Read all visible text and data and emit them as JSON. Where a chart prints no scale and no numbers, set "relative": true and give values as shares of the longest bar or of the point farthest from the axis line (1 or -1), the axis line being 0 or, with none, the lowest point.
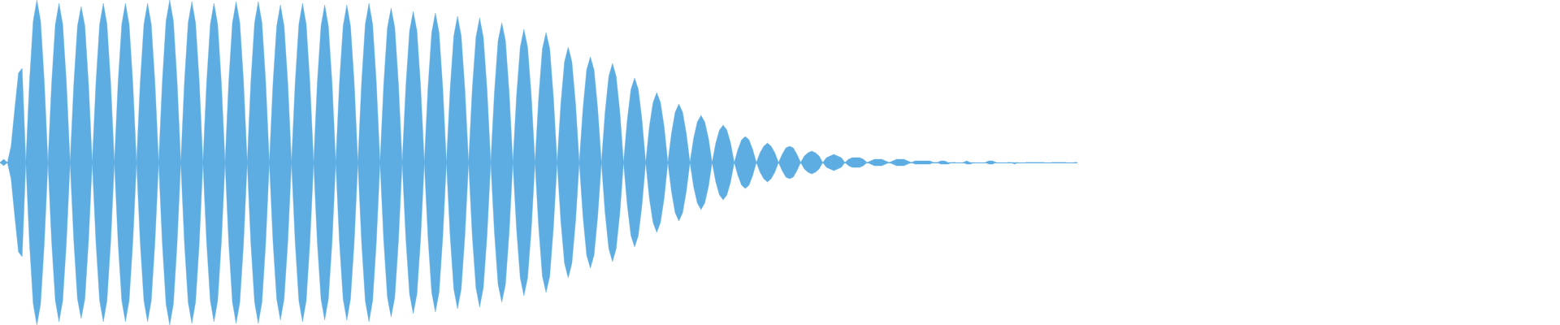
{
  "chart_data": {
    "type": "area",
    "relative": true,
    "categories": [
      null,
      null,
      null,
      null,
      null,
      null,
      null,
      null,
      null,
      null,
      null,
      null,
      null,
      null,
      null,
      null,
      null,
      null,
      null,
      null,
      null,
      null,
      null,
      null,
      null,
      null,
      null,
      null,
      null,
      null,
      null,
      null,
      null,
      null,
      null,
      null,
      null,
      null,
      null,
      null,
      null,
      null,
      null,
      null,
      null,
      null,
      null,
      null,
      null,
      null,
      null,
      null,
      null,
      null,
      null,
      null,
      null,
      null,
      null,
      null,
      null,
      null,
      null,
      null,
      null,
      null,
      null,
      null,
      null,
      null,
      null,
      null,
      null,
      null,
      null,
      null,
      null,
      null,
      null,
      null,
      null,
      null,
      null,
      null,
      null,
      null,
      null,
      null,
      null,
      null,
      null,
      null,
      null,
      null,
      null,
      null,
      null,
      null,
      null,
      null,
      null,
      null,
      null,
      null,
      null,
      null,
      null,
      null,
      null,
      null,
      null,
      null,
      null,
      null,
      null,
      null,
      null,
      null,
      null,
      null,
      null,
      null,
      null,
      null,
      null,
      null,
      null,
      null,
      null,
      null,
      null,
      null,
      null,
      null,
      null,
      null,
      null,
      null,
      null,
      null,
      null,
      null,
      null,
      null,
      null,
      null,
      null,
      null,
      null,
      null,
      null,
      null,
      null,
      null,
      null,
      null,
      null,
      null,
      null,
      null,
      null,
      null,
      null,
      null,
      null,
      null,
      null,
      null,
      null,
      null,
      null,
      null,
      null,
      null,
      null,
      null,
      null,
      null,
      null,
      null,
      null,
      null,
      null,
      null,
      null,
      null,
      null,
      null,
      null,
      null,
      null,
      null,
      null,
      null,
      null,
      null,
      null,
      null,
      null,
      null,
      null,
      null,
      null,
      null,
      null,
      null,
      null,
      null,
      null,
      null,
      null,
      null,
      null,
      null,
      null,
      null,
      null,
      null,
      null,
      null,
      null,
      null,
      null,
      null,
      null,
      null,
      null,
      null,
      null,
      null,
      null,
      null,
      null,
      null,
      null,
      null,
      null,
      null,
      null,
      null,
      null,
      null,
      null,
      null,
      null,
      null,
      null,
      null,
      null,
      null,
      null,
      null,
      null,
      null,
      null,
      null,
      null,
      null,
      null,
      null,
      null,
      null,
      null,
      null,
      null,
      null,
      null,
      null,
      null,
      null,
      null,
      null,
      null,
      null,
      null,
      null,
      null,
      null,
      null,
      null,
      null,
      null,
      null,
      null,
      null,
      null,
      null,
      null,
      null,
      null,
      null,
      null,
      null
    ],
    "series": [
      {
        "color": "#5dade2",
        "values": [
          0,
          0.02,
          0,
          0.1,
          0.33,
          0.55,
          0.58,
          0,
          0.5,
          0.87,
          1,
          0.87,
          0.5,
          0,
          0.49,
          0.85,
          0.98,
          0.85,
          0.49,
          0,
          0.48,
          0.84,
          0.96,
          0.84,
          0.48,
          0,
          0.49,
          0.85,
          0.98,
          0.85,
          0.49,
          0,
          0.49,
          0.85,
          0.98,
          0.85,
          0.49,
          0,
          0.49,
          0.85,
          0.98,
          0.85,
          0.49,
          0,
          0.5,
          0.87,
          1,
          0.87,
          0.5,
          0,
          0.5,
          0.86,
          0.99,
          0.86,
          0.5,
          0,
          0.49,
          0.85,
          0.98,
          0.85,
          0.49,
          0,
          0.5,
          0.86,
          0.99,
          0.86,
          0.5,
          0,
          0.5,
          0.86,
          0.99,
          0.86,
          0.5,
          0,
          0.49,
          0.84,
          0.97,
          0.84,
          0.49,
          0,
          0.49,
          0.85,
          0.98,
          0.85,
          0.49,
          0,
          0.49,
          0.84,
          0.97,
          0.84,
          0.49,
          0,
          0.49,
          0.84,
          0.97,
          0.84,
          0.49,
          0,
          0.49,
          0.85,
          0.98,
          0.85,
          0.49,
          0,
          0.48,
          0.83,
          0.95,
          0.83,
          0.48,
          0,
          0.47,
          0.81,
          0.93,
          0.81,
          0.47,
          0,
          0.46,
          0.8,
          0.92,
          0.8,
          0.46,
          0,
          0.45,
          0.78,
          0.9,
          0.78,
          0.45,
          0,
          0.45,
          0.77,
          0.89,
          0.77,
          0.45,
          0,
          0.43,
          0.75,
          0.86,
          0.75,
          0.43,
          0,
          0.41,
          0.71,
          0.82,
          0.71,
          0.41,
          0,
          0.4,
          0.7,
          0.8,
          0.7,
          0.4,
          0,
          0.36,
          0.62,
          0.71,
          0.62,
          0.36,
          0,
          0.33,
          0.57,
          0.65,
          0.57,
          0.33,
          0,
          0.31,
          0.53,
          0.61,
          0.53,
          0.31,
          0,
          0.26,
          0.45,
          0.52,
          0.45,
          0.26,
          0,
          0.22,
          0.37,
          0.43,
          0.37,
          0.22,
          0,
          0.18,
          0.31,
          0.36,
          0.31,
          0.18,
          0,
          0.15,
          0.25,
          0.29,
          0.25,
          0.15,
          0,
          0.12,
          0.2,
          0.23,
          0.2,
          0.12,
          0,
          0.08,
          0.14,
          0.16,
          0.14,
          0.08,
          0,
          0.06,
          0.1,
          0.12,
          0.1,
          0.06,
          0,
          0.05,
          0.09,
          0.1,
          0.09,
          0.05,
          0,
          0.04,
          0.06,
          0.07,
          0.06,
          0.04,
          0,
          0.03,
          0.04,
          0.05,
          0.04,
          0.03,
          0,
          0.02,
          0.03,
          0.03,
          0.03,
          0.02,
          0,
          0.01,
          0.02,
          0.02,
          0.02,
          0.01,
          0,
          0.01,
          0.02,
          0.02,
          0.02,
          0.01,
          0,
          0.01,
          0.01,
          0.01,
          0.01,
          0.01,
          0,
          0,
          0.01,
          0.01,
          0,
          0,
          0,
          null,
          0,
          0.01,
          0,
          0,
          null,
          null,
          0,
          0.01,
          0.01,
          0,
          null,
          null,
          0,
          0,
          0,
          0,
          null,
          0,
          0,
          0,
          0,
          0,
          0,
          null,
          0,
          0,
          0,
          0,
          0,
          null,
          0,
          0
        ]
      },
      {
        "color": "#5dade2",
        "values": [
          0,
          -0.02,
          0,
          -0.1,
          -0.33,
          -0.55,
          -0.58,
          0,
          -0.5,
          -0.87,
          -1,
          -0.87,
          -0.5,
          0,
          -0.49,
          -0.85,
          -0.98,
          -0.85,
          -0.49,
          0,
          -0.48,
          -0.84,
          -0.96,
          -0.84,
          -0.48,
          0,
          -0.49,
          -0.85,
          -0.98,
          -0.85,
          -0.49,
          0,
          -0.49,
          -0.85,
          -0.98,
          -0.85,
          -0.49,
          0,
          -0.49,
          -0.85,
          -0.98,
          -0.85,
          -0.49,
          0,
          -0.5,
          -0.87,
          -1,
          -0.87,
          -0.5,
          0,
          -0.5,
          -0.86,
          -0.99,
          -0.86,
          -0.5,
          0,
          -0.49,
          -0.85,
          -0.98,
          -0.85,
          -0.49,
          0,
          -0.5,
          -0.86,
          -0.99,
          -0.86,
          -0.5,
          0,
          -0.5,
          -0.86,
          -0.99,
          -0.86,
          -0.5,
          0,
          -0.49,
          -0.84,
          -0.97,
          -0.84,
          -0.49,
          0,
          -0.49,
          -0.85,
          -0.98,
          -0.85,
          -0.49,
          0,
          -0.49,
          -0.84,
          -0.97,
          -0.84,
          -0.49,
          0,
          -0.49,
          -0.84,
          -0.97,
          -0.84,
          -0.49,
          0,
          -0.49,
          -0.85,
          -0.98,
          -0.85,
          -0.49,
          0,
          -0.48,
          -0.83,
          -0.95,
          -0.83,
          -0.48,
          0,
          -0.47,
          -0.81,
          -0.93,
          -0.81,
          -0.47,
          0,
          -0.46,
          -0.8,
          -0.92,
          -0.8,
          -0.46,
          0,
          -0.45,
          -0.78,
          -0.9,
          -0.78,
          -0.45,
          0,
          -0.45,
          -0.77,
          -0.89,
          -0.77,
          -0.45,
          0,
          -0.43,
          -0.75,
          -0.86,
          -0.75,
          -0.43,
          0,
          -0.41,
          -0.71,
          -0.82,
          -0.71,
          -0.41,
          0,
          -0.4,
          -0.7,
          -0.8,
          -0.7,
          -0.4,
          0,
          -0.36,
          -0.62,
          -0.71,
          -0.62,
          -0.36,
          0,
          -0.33,
          -0.57,
          -0.65,
          -0.57,
          -0.33,
          0,
          -0.31,
          -0.53,
          -0.61,
          -0.53,
          -0.31,
          0,
          -0.26,
          -0.45,
          -0.52,
          -0.45,
          -0.26,
          0,
          -0.22,
          -0.37,
          -0.43,
          -0.37,
          -0.22,
          0,
          -0.18,
          -0.31,
          -0.36,
          -0.31,
          -0.18,
          0,
          -0.15,
          -0.25,
          -0.29,
          -0.25,
          -0.15,
          0,
          -0.12,
          -0.2,
          -0.23,
          -0.2,
          -0.12,
          0,
          -0.08,
          -0.14,
          -0.16,
          -0.14,
          -0.08,
          0,
          -0.06,
          -0.1,
          -0.12,
          -0.1,
          -0.06,
          0,
          -0.05,
          -0.09,
          -0.1,
          -0.09,
          -0.05,
          0,
          -0.04,
          -0.06,
          -0.07,
          -0.06,
          -0.04,
          0,
          -0.03,
          -0.04,
          -0.05,
          -0.04,
          -0.03,
          0,
          -0.02,
          -0.03,
          -0.03,
          -0.03,
          -0.02,
          0,
          -0.01,
          -0.02,
          -0.02,
          -0.02,
          -0.01,
          0,
          -0.01,
          -0.02,
          -0.02,
          -0.02,
          -0.01,
          0,
          -0.01,
          -0.01,
          -0.01,
          -0.01,
          -0.01,
          0,
          0,
          -0.01,
          -0.01,
          -0.01,
          0,
          0,
          null,
          0,
          -0.01,
          -0.01,
          0,
          null,
          null,
          0,
          -0.01,
          -0.01,
          0,
          null,
          null,
          0,
          0,
          -0.01,
          0,
          null,
          0,
          0,
          0,
          0,
          0,
          0,
          null,
          0,
          0,
          0,
          0,
          0,
          null,
          0,
          0
        ]
      }
    ]
  }
}
